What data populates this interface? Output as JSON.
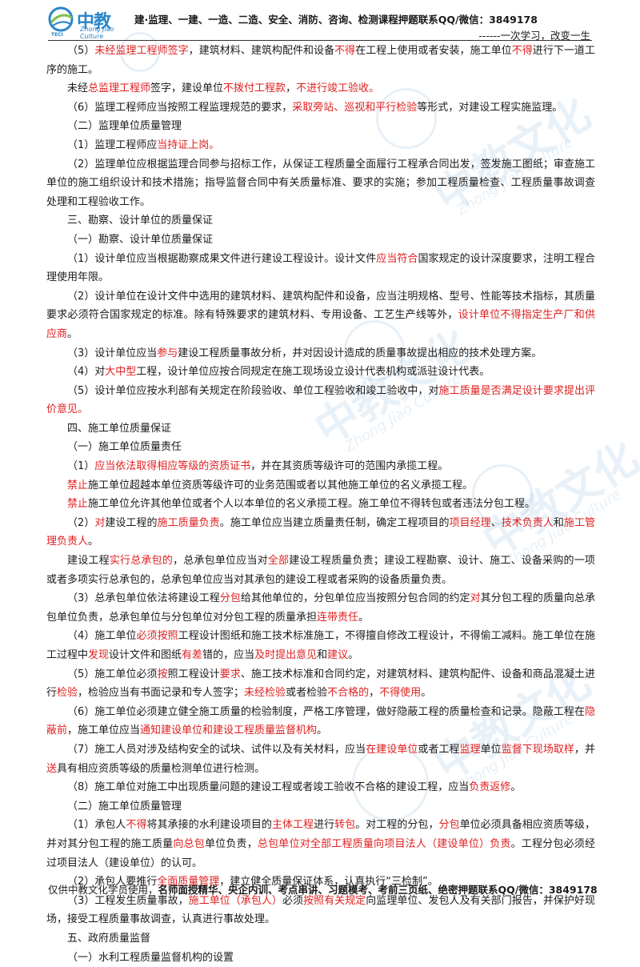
{
  "header": {
    "logo_cn": "中教",
    "logo_en": "Zhong Jiao Culture",
    "logo_sub": "TECI",
    "line1": "建·监理、一建、一造、二造、安全、消防、咨询、检测课程押题联系QQ/微信：3849178",
    "line2": "------一次学习，改变一生"
  },
  "watermark": {
    "text": "中教文化",
    "en": "Zhong Jiao Culture"
  },
  "paragraphs": [
    {
      "indent": true,
      "segs": [
        {
          "t": "（5）"
        },
        {
          "t": "未经监理工程师签字",
          "red": true
        },
        {
          "t": "，建筑材料、建筑构配件和设备"
        },
        {
          "t": "不得",
          "red": true
        },
        {
          "t": "在工程上使用或者安装，施工单位"
        },
        {
          "t": "不得",
          "red": true
        },
        {
          "t": "进行下一道工序的施工。"
        }
      ]
    },
    {
      "indent": true,
      "segs": [
        {
          "t": "未经"
        },
        {
          "t": "总监理工程师",
          "red": true
        },
        {
          "t": "签字，建设单位"
        },
        {
          "t": "不拨付工程款",
          "red": true
        },
        {
          "t": "，"
        },
        {
          "t": "不进行竣工验收。",
          "red": true
        }
      ]
    },
    {
      "indent": true,
      "segs": [
        {
          "t": "（6）监理工程师应当按照工程监理规范的要求，"
        },
        {
          "t": "采取旁站、巡视和平行检验",
          "red": true
        },
        {
          "t": "等形式，对建设工程实施监理。"
        }
      ]
    },
    {
      "indent": true,
      "segs": [
        {
          "t": "（二）监理单位质量管理"
        }
      ]
    },
    {
      "indent": true,
      "segs": [
        {
          "t": "（1）监理工程师应"
        },
        {
          "t": "当持证上岗。",
          "red": true
        }
      ]
    },
    {
      "indent": true,
      "segs": [
        {
          "t": "（2）监理单位应根据监理合同参与招标工作，从保证工程质量全面履行工程承合同出发，签发施工图纸；审查施工单位的施工组织设计和技术措施；指导监督合同中有关质量标准、要求的实施；参加工程质量检查、工程质量事故调查处理和工程验收工作。"
        }
      ]
    },
    {
      "indent": true,
      "segs": [
        {
          "t": "三、勘察、设计单位的质量保证"
        }
      ]
    },
    {
      "indent": true,
      "segs": [
        {
          "t": "（一）勘察、设计单位质量保证"
        }
      ]
    },
    {
      "indent": true,
      "segs": [
        {
          "t": "（1）设计单位应当根据勘察成果文件进行建设工程设计。设计文件"
        },
        {
          "t": "应当符合",
          "red": true
        },
        {
          "t": "国家规定的设计深度要求，注明工程合理使用年限。"
        }
      ]
    },
    {
      "indent": true,
      "segs": [
        {
          "t": "（2）设计单位在设计文件中选用的建筑材料、建筑构配件和设备，应当注明规格、型号、性能等技术指标，其质量要求必须符合国家规定的标准。除有特殊要求的建筑材料、专用设备、工艺生产线等外，"
        },
        {
          "t": "设计单位不得指定生产厂和供应商",
          "red": true
        },
        {
          "t": "。"
        }
      ]
    },
    {
      "indent": true,
      "segs": [
        {
          "t": "（3）设计单位应当"
        },
        {
          "t": "参与",
          "red": true
        },
        {
          "t": "建设工程质量事故分析，并对因设计造成的质量事故提出相应的技术处理方案。"
        }
      ]
    },
    {
      "indent": true,
      "segs": [
        {
          "t": "（4）对"
        },
        {
          "t": "大中型",
          "red": true
        },
        {
          "t": "工程，设计单位应按合同规定在施工现场设立设计代表机构或派驻设计代表。"
        }
      ]
    },
    {
      "indent": true,
      "segs": [
        {
          "t": "（5）设计单位应按水利部有关规定在阶段验收、单位工程验收和竣工验收中，对"
        },
        {
          "t": "施工质量是否满足设计要求提出评价意见。",
          "red": true
        }
      ]
    },
    {
      "indent": true,
      "segs": [
        {
          "t": "四、施工单位质量保证"
        }
      ]
    },
    {
      "indent": true,
      "segs": [
        {
          "t": "（一）施工单位质量责任"
        }
      ]
    },
    {
      "indent": true,
      "segs": [
        {
          "t": "（1）"
        },
        {
          "t": "应当依法取得相应等级的资质证书",
          "red": true
        },
        {
          "t": "，并在其资质等级许可的范围内承揽工程。"
        }
      ]
    },
    {
      "indent": true,
      "segs": [
        {
          "t": "禁止",
          "red": true
        },
        {
          "t": "施工单位超越本单位资质等级许可的业务范围或者以其他施工单位的名义承揽工程。"
        }
      ]
    },
    {
      "indent": true,
      "segs": [
        {
          "t": "禁止",
          "red": true
        },
        {
          "t": "施工单位允许其他单位或者个人以本单位的名义承揽工程。施工单位不得转包或者违法分包工程。"
        }
      ]
    },
    {
      "indent": true,
      "segs": [
        {
          "t": "（2）"
        },
        {
          "t": "对",
          "red": true
        },
        {
          "t": "建设工程的"
        },
        {
          "t": "施工质量负责",
          "red": true
        },
        {
          "t": "。施工单位应当建立质量责任制，确定工程项目的"
        },
        {
          "t": "项目经理",
          "red": true
        },
        {
          "t": "、"
        },
        {
          "t": "技术负责人",
          "red": true
        },
        {
          "t": "和"
        },
        {
          "t": "施工管理负责人",
          "red": true
        },
        {
          "t": "。"
        }
      ]
    },
    {
      "indent": true,
      "segs": [
        {
          "t": "建设工程"
        },
        {
          "t": "实行总承包的",
          "red": true
        },
        {
          "t": "，总承包单位应当对"
        },
        {
          "t": "全部",
          "red": true
        },
        {
          "t": "建设工程质量负责；建设工程勘察、设计、施工、设备采购的一项或者多项实行总承包的，总承包单位应当对其承包的建设工程或者采购的设备质量负责。"
        }
      ]
    },
    {
      "indent": true,
      "segs": [
        {
          "t": "（3）总承包单位依法将建设工程"
        },
        {
          "t": "分包",
          "red": true
        },
        {
          "t": "给其他单位的，分包单位应当按照分包合同的约定"
        },
        {
          "t": "对",
          "red": true
        },
        {
          "t": "其分包工程的质量向总承包单位负责，总承包单位与分包单位对分包工程的质量承担"
        },
        {
          "t": "连带责任",
          "red": true
        },
        {
          "t": "。"
        }
      ]
    },
    {
      "indent": true,
      "segs": [
        {
          "t": "（4）施工单位"
        },
        {
          "t": "必须按照",
          "red": true
        },
        {
          "t": "工程设计图纸和施工技术标准施工，不得擅自修改工程设计，不得偷工减料。施工单位在施工过程中"
        },
        {
          "t": "发现",
          "red": true
        },
        {
          "t": "设计文件和图纸"
        },
        {
          "t": "有差",
          "red": true
        },
        {
          "t": "错的，应当"
        },
        {
          "t": "及时提出意见",
          "red": true
        },
        {
          "t": "和"
        },
        {
          "t": "建议",
          "red": true
        },
        {
          "t": "。"
        }
      ]
    },
    {
      "indent": true,
      "segs": [
        {
          "t": "（5）施工单位必须"
        },
        {
          "t": "按",
          "red": true
        },
        {
          "t": "照工程设计"
        },
        {
          "t": "要求",
          "red": true
        },
        {
          "t": "、施工技术标准和合同约定，对建筑材料、建筑构配件、设备和商品混凝土进行"
        },
        {
          "t": "检验",
          "red": true
        },
        {
          "t": "，检验应当有书面记录和专人签字；"
        },
        {
          "t": "未经检验",
          "red": true
        },
        {
          "t": "或者检验"
        },
        {
          "t": "不合格的",
          "red": true
        },
        {
          "t": "，"
        },
        {
          "t": "不得使用",
          "red": true
        },
        {
          "t": "。"
        }
      ]
    },
    {
      "indent": true,
      "segs": [
        {
          "t": "（6）施工单位必须建立健全施工质量的检验制度，严格工序管理，做好隐蔽工程的质量检查和记录。隐蔽工程在"
        },
        {
          "t": "隐蔽前",
          "red": true
        },
        {
          "t": "，施工单位应当"
        },
        {
          "t": "通知建设单位和建设工程质量监督机构",
          "red": true
        },
        {
          "t": "。"
        }
      ]
    },
    {
      "indent": true,
      "segs": [
        {
          "t": "（7）施工人员对涉及结构安全的试块、试件以及有关材料，应当"
        },
        {
          "t": "在建设单位",
          "red": true
        },
        {
          "t": "或者工程"
        },
        {
          "t": "监理",
          "red": true
        },
        {
          "t": "单位"
        },
        {
          "t": "监督下现场取样",
          "red": true
        },
        {
          "t": "，并"
        },
        {
          "t": "送",
          "red": true
        },
        {
          "t": "具有相应资质等级的质量检测单位进行检测。"
        }
      ]
    },
    {
      "indent": true,
      "segs": [
        {
          "t": "（8）施工单位对施工中出现质量问题的建设工程或者竣工验收不合格的建设工程，应当"
        },
        {
          "t": "负责返修",
          "red": true
        },
        {
          "t": "。"
        }
      ]
    },
    {
      "indent": true,
      "segs": [
        {
          "t": "（二）施工单位质量管理"
        }
      ]
    },
    {
      "indent": true,
      "segs": [
        {
          "t": "（1）承包人"
        },
        {
          "t": "不得",
          "red": true
        },
        {
          "t": "将其承接的水利建设项目的"
        },
        {
          "t": "主体工程",
          "red": true
        },
        {
          "t": "进行"
        },
        {
          "t": "转包",
          "red": true
        },
        {
          "t": "。对工程的分包，"
        },
        {
          "t": "分包",
          "red": true
        },
        {
          "t": "单位必须具备相应资质等级，并对其分包工程的施工质量"
        },
        {
          "t": "向总包",
          "red": true
        },
        {
          "t": "单位负责，"
        },
        {
          "t": "总包单位对全部工程质量向项目法人（建设单位）负责",
          "red": true
        },
        {
          "t": "。工程分包必须经过项目法人（建设单位）的认可。"
        }
      ]
    },
    {
      "indent": true,
      "segs": [
        {
          "t": "（2）承包人要推行"
        },
        {
          "t": "全面质量管理",
          "red": true
        },
        {
          "t": "，建立健全质量保证体系，认真执行“三检制”。"
        }
      ]
    },
    {
      "indent": true,
      "segs": [
        {
          "t": "（3）工程发生质量事故，"
        },
        {
          "t": "施工单位（承包人）",
          "red": true
        },
        {
          "t": "必须"
        },
        {
          "t": "按照有关规定",
          "red": true
        },
        {
          "t": "向监理单位、发包人及有关部门报告，并保护好现场，接受工程质量事故调查，认真进行事故处理。"
        }
      ]
    },
    {
      "indent": true,
      "segs": [
        {
          "t": "五、政府质量监督"
        }
      ]
    },
    {
      "indent": true,
      "segs": [
        {
          "t": "（一）水利工程质量监督机构的设置"
        }
      ]
    }
  ],
  "footer": {
    "prefix": "仅供中教文化学员使用，",
    "bold": "名师面授精华、央企内训、考点串讲、习题模考、考前三页纸、绝密押题联系QQ/微信：3849178"
  }
}
